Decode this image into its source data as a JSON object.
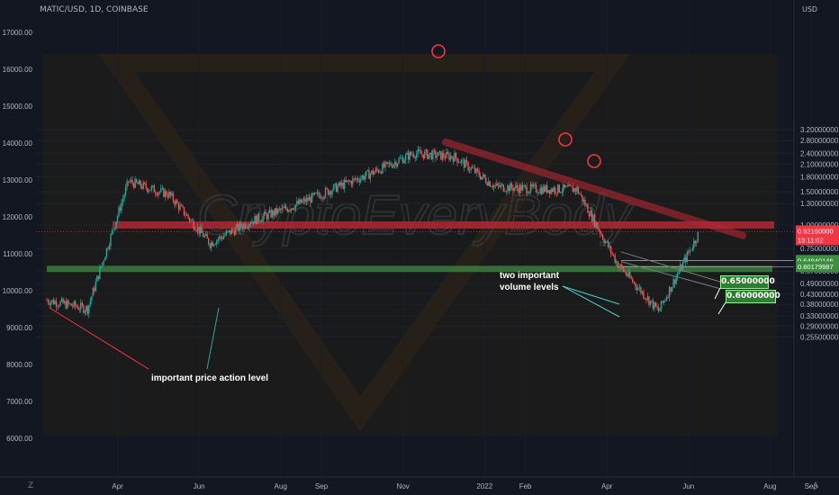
{
  "header": {
    "title": "MATIC/USD, 1D, COINBASE"
  },
  "right_axis": {
    "currency": "USD",
    "ticks": [
      {
        "v": 3.2,
        "label": "3.20000000"
      },
      {
        "v": 2.8,
        "label": "2.80000000"
      },
      {
        "v": 2.4,
        "label": "2.40000000"
      },
      {
        "v": 2.1,
        "label": "2.10000000"
      },
      {
        "v": 1.8,
        "label": "1.80000000"
      },
      {
        "v": 1.5,
        "label": "1.50000000"
      },
      {
        "v": 1.3,
        "label": "1.30000000"
      },
      {
        "v": 1.0,
        "label": "1.00000000"
      },
      {
        "v": 0.75,
        "label": "0.75000000"
      },
      {
        "v": 0.57,
        "label": "0.57000000"
      },
      {
        "v": 0.49,
        "label": "0.49000000"
      },
      {
        "v": 0.43,
        "label": "0.43000000"
      },
      {
        "v": 0.38,
        "label": "0.38000000"
      },
      {
        "v": 0.33,
        "label": "0.33000000"
      },
      {
        "v": 0.29,
        "label": "0.29000000"
      },
      {
        "v": 0.255,
        "label": "0.25500000"
      }
    ],
    "price_tags": [
      {
        "v": 0.6494,
        "label": "0.64940146",
        "bg": "#3e8e41"
      },
      {
        "v": 0.6018,
        "label": "0.60179987",
        "bg": "#3e8e41"
      }
    ],
    "last_price": {
      "v": 0.9216,
      "label": "0.92160000",
      "countdown": "13:11:02",
      "bg": "#f23645"
    }
  },
  "left_axis": {
    "ticks": [
      "17000.00",
      "16000.00",
      "15000.00",
      "14000.00",
      "13000.00",
      "12000.00",
      "11000.00",
      "10000.00",
      "9000.00",
      "8000.00",
      "7000.00",
      "6000.00"
    ]
  },
  "x_axis": {
    "ticks": [
      {
        "t": 2.0,
        "label": "Apr"
      },
      {
        "t": 4.0,
        "label": "Jun"
      },
      {
        "t": 6.0,
        "label": "Aug"
      },
      {
        "t": 7.0,
        "label": "Sep"
      },
      {
        "t": 9.0,
        "label": "Nov"
      },
      {
        "t": 11.0,
        "label": "2022"
      },
      {
        "t": 12.0,
        "label": "Feb"
      },
      {
        "t": 14.0,
        "label": "Apr"
      },
      {
        "t": 16.0,
        "label": "Jun"
      },
      {
        "t": 18.0,
        "label": "Aug"
      },
      {
        "t": 19.0,
        "label": "Sep"
      }
    ]
  },
  "annotations": {
    "price_action": "important price action level",
    "volume_line1": "two important",
    "volume_line2": "volume levels",
    "box_high": "0.65000000",
    "box_low": "0.60000000"
  },
  "watermark": "CryptoEveryBody",
  "footer": {
    "left_logo": "Z",
    "right_logo": "A"
  },
  "colors": {
    "up": "#26a69a",
    "down": "#ef5350",
    "support_band": "#4caf50",
    "resistance_band": "#b22833",
    "background": "#131722",
    "text": "#b2b5be"
  },
  "chart_data": {
    "type": "candlestick",
    "title": "MATIC/USD, 1D, COINBASE",
    "x_axis": "date (2021-03 to 2022-09)",
    "y_axis": "USD (log scale)",
    "ylim": [
      0.255,
      3.2
    ],
    "key_levels": {
      "resistance": 1.0,
      "support_high": 0.6494,
      "support_low": 0.6018,
      "all_time_high": 2.8,
      "last_price": 0.9216
    },
    "close_path": [
      {
        "month": "Mar-21",
        "close": 0.4
      },
      {
        "month": "Apr-21",
        "close": 0.36
      },
      {
        "month": "May-21",
        "close": 1.7
      },
      {
        "month": "Jun-21",
        "close": 1.45
      },
      {
        "month": "Jul-21",
        "close": 0.8
      },
      {
        "month": "Aug-21",
        "close": 1.05
      },
      {
        "month": "Sep-21",
        "close": 1.25
      },
      {
        "month": "Oct-21",
        "close": 1.55
      },
      {
        "month": "Nov-21",
        "close": 1.9
      },
      {
        "month": "Dec-21",
        "close": 2.4
      },
      {
        "month": "Jan-22",
        "close": 2.3
      },
      {
        "month": "Feb-22",
        "close": 1.6
      },
      {
        "month": "Mar-22",
        "close": 1.55
      },
      {
        "month": "Apr-22",
        "close": 1.55
      },
      {
        "month": "May-22",
        "close": 0.62
      },
      {
        "month": "Jun-22",
        "close": 0.35
      },
      {
        "month": "Jul-22",
        "close": 0.92
      }
    ]
  }
}
